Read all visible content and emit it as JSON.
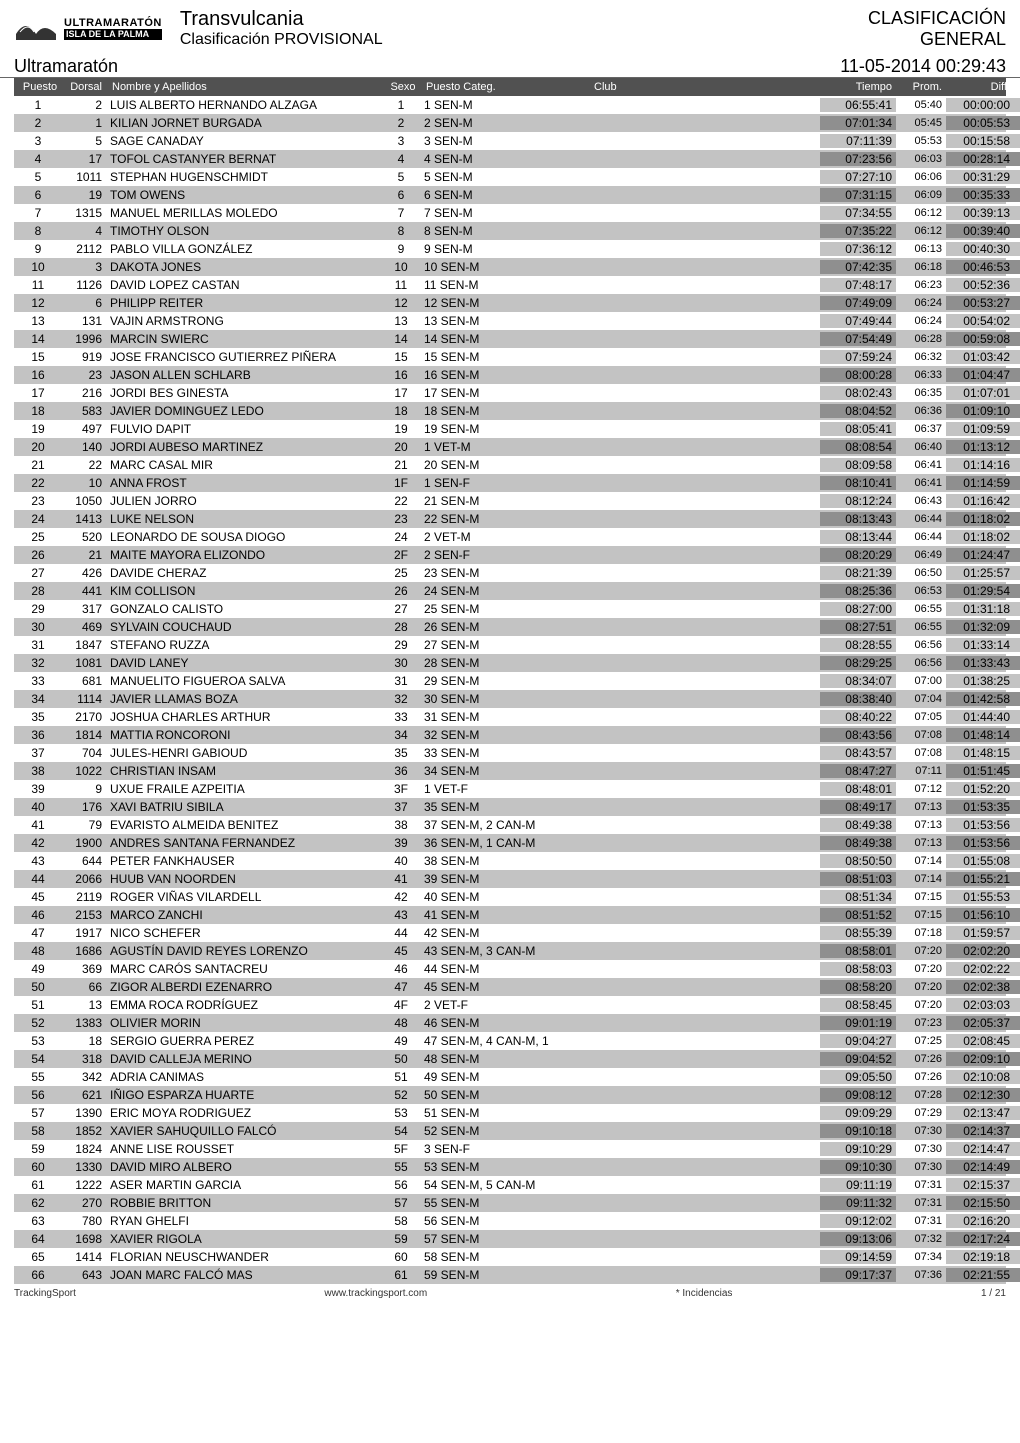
{
  "header": {
    "logo_line1": "ULTRAMARATÓN",
    "logo_line2": "ISLA DE LA PALMA",
    "event_title": "Transvulcania",
    "event_sub": "Clasificación PROVISIONAL",
    "class_title": "CLASIFICACIÓN",
    "class_sub": "GENERAL"
  },
  "section": {
    "name": "Ultramaratón",
    "timestamp": "11-05-2014  00:29:43"
  },
  "cols": {
    "puesto": "Puesto",
    "dorsal": "Dorsal",
    "nombre": "Nombre y Apellidos",
    "sexo": "Sexo",
    "cat": "Puesto Categ.",
    "club": "Club",
    "tiempo": "Tiempo",
    "prom": "Prom.",
    "diff": "Diff."
  },
  "colors": {
    "row_even_bg": "#c3c3c3",
    "row_odd_bg": "#ffffff",
    "tiempo_bg_even": "#8f8f8f",
    "tiempo_bg_odd": "#c3c3c3",
    "diff_bg_even": "#8f8f8f",
    "diff_bg_odd": "#c3c3c3"
  },
  "rows": [
    {
      "p": 1,
      "d": 2,
      "n": "LUIS ALBERTO HERNANDO ALZAGA",
      "s": 1,
      "c": "1 SEN-M",
      "t": "06:55:41",
      "pr": "05:40",
      "df": "00:00:00"
    },
    {
      "p": 2,
      "d": 1,
      "n": "KILIAN JORNET BURGADA",
      "s": 2,
      "c": "2 SEN-M",
      "t": "07:01:34",
      "pr": "05:45",
      "df": "00:05:53"
    },
    {
      "p": 3,
      "d": 5,
      "n": "SAGE CANADAY",
      "s": 3,
      "c": "3 SEN-M",
      "t": "07:11:39",
      "pr": "05:53",
      "df": "00:15:58"
    },
    {
      "p": 4,
      "d": 17,
      "n": "TOFOL CASTANYER BERNAT",
      "s": 4,
      "c": "4 SEN-M",
      "t": "07:23:56",
      "pr": "06:03",
      "df": "00:28:14"
    },
    {
      "p": 5,
      "d": 1011,
      "n": "STEPHAN HUGENSCHMIDT",
      "s": 5,
      "c": "5 SEN-M",
      "t": "07:27:10",
      "pr": "06:06",
      "df": "00:31:29"
    },
    {
      "p": 6,
      "d": 19,
      "n": "TOM OWENS",
      "s": 6,
      "c": "6 SEN-M",
      "t": "07:31:15",
      "pr": "06:09",
      "df": "00:35:33"
    },
    {
      "p": 7,
      "d": 1315,
      "n": "MANUEL MERILLAS MOLEDO",
      "s": 7,
      "c": "7 SEN-M",
      "t": "07:34:55",
      "pr": "06:12",
      "df": "00:39:13"
    },
    {
      "p": 8,
      "d": 4,
      "n": "TIMOTHY OLSON",
      "s": 8,
      "c": "8 SEN-M",
      "t": "07:35:22",
      "pr": "06:12",
      "df": "00:39:40"
    },
    {
      "p": 9,
      "d": 2112,
      "n": "PABLO VILLA GONZÁLEZ",
      "s": 9,
      "c": "9 SEN-M",
      "t": "07:36:12",
      "pr": "06:13",
      "df": "00:40:30"
    },
    {
      "p": 10,
      "d": 3,
      "n": "DAKOTA JONES",
      "s": 10,
      "c": "10 SEN-M",
      "t": "07:42:35",
      "pr": "06:18",
      "df": "00:46:53"
    },
    {
      "p": 11,
      "d": 1126,
      "n": "DAVID LOPEZ CASTAN",
      "s": 11,
      "c": "11 SEN-M",
      "t": "07:48:17",
      "pr": "06:23",
      "df": "00:52:36"
    },
    {
      "p": 12,
      "d": 6,
      "n": "PHILIPP REITER",
      "s": 12,
      "c": "12 SEN-M",
      "t": "07:49:09",
      "pr": "06:24",
      "df": "00:53:27"
    },
    {
      "p": 13,
      "d": 131,
      "n": "VAJIN ARMSTRONG",
      "s": 13,
      "c": "13 SEN-M",
      "t": "07:49:44",
      "pr": "06:24",
      "df": "00:54:02"
    },
    {
      "p": 14,
      "d": 1996,
      "n": "MARCIN SWIERC",
      "s": 14,
      "c": "14 SEN-M",
      "t": "07:54:49",
      "pr": "06:28",
      "df": "00:59:08"
    },
    {
      "p": 15,
      "d": 919,
      "n": "JOSE FRANCISCO GUTIERREZ PIÑERA",
      "s": 15,
      "c": "15 SEN-M",
      "t": "07:59:24",
      "pr": "06:32",
      "df": "01:03:42"
    },
    {
      "p": 16,
      "d": 23,
      "n": "JASON ALLEN SCHLARB",
      "s": 16,
      "c": "16 SEN-M",
      "t": "08:00:28",
      "pr": "06:33",
      "df": "01:04:47"
    },
    {
      "p": 17,
      "d": 216,
      "n": "JORDI BES GINESTA",
      "s": 17,
      "c": "17 SEN-M",
      "t": "08:02:43",
      "pr": "06:35",
      "df": "01:07:01"
    },
    {
      "p": 18,
      "d": 583,
      "n": "JAVIER DOMINGUEZ LEDO",
      "s": 18,
      "c": "18 SEN-M",
      "t": "08:04:52",
      "pr": "06:36",
      "df": "01:09:10"
    },
    {
      "p": 19,
      "d": 497,
      "n": "FULVIO DAPIT",
      "s": 19,
      "c": "19 SEN-M",
      "t": "08:05:41",
      "pr": "06:37",
      "df": "01:09:59"
    },
    {
      "p": 20,
      "d": 140,
      "n": "JORDI AUBESO MARTINEZ",
      "s": 20,
      "c": "1 VET-M",
      "t": "08:08:54",
      "pr": "06:40",
      "df": "01:13:12"
    },
    {
      "p": 21,
      "d": 22,
      "n": "MARC CASAL MIR",
      "s": 21,
      "c": "20 SEN-M",
      "t": "08:09:58",
      "pr": "06:41",
      "df": "01:14:16"
    },
    {
      "p": 22,
      "d": 10,
      "n": "ANNA FROST",
      "s": "1F",
      "c": "1 SEN-F",
      "t": "08:10:41",
      "pr": "06:41",
      "df": "01:14:59"
    },
    {
      "p": 23,
      "d": 1050,
      "n": "JULIEN JORRO",
      "s": 22,
      "c": "21 SEN-M",
      "t": "08:12:24",
      "pr": "06:43",
      "df": "01:16:42"
    },
    {
      "p": 24,
      "d": 1413,
      "n": "LUKE NELSON",
      "s": 23,
      "c": "22 SEN-M",
      "t": "08:13:43",
      "pr": "06:44",
      "df": "01:18:02"
    },
    {
      "p": 25,
      "d": 520,
      "n": "LEONARDO DE SOUSA DIOGO",
      "s": 24,
      "c": "2 VET-M",
      "t": "08:13:44",
      "pr": "06:44",
      "df": "01:18:02"
    },
    {
      "p": 26,
      "d": 21,
      "n": "MAITE MAYORA ELIZONDO",
      "s": "2F",
      "c": "2 SEN-F",
      "t": "08:20:29",
      "pr": "06:49",
      "df": "01:24:47"
    },
    {
      "p": 27,
      "d": 426,
      "n": "DAVIDE CHERAZ",
      "s": 25,
      "c": "23 SEN-M",
      "t": "08:21:39",
      "pr": "06:50",
      "df": "01:25:57"
    },
    {
      "p": 28,
      "d": 441,
      "n": "KIM COLLISON",
      "s": 26,
      "c": "24 SEN-M",
      "t": "08:25:36",
      "pr": "06:53",
      "df": "01:29:54"
    },
    {
      "p": 29,
      "d": 317,
      "n": "GONZALO CALISTO",
      "s": 27,
      "c": "25 SEN-M",
      "t": "08:27:00",
      "pr": "06:55",
      "df": "01:31:18"
    },
    {
      "p": 30,
      "d": 469,
      "n": "SYLVAIN COUCHAUD",
      "s": 28,
      "c": "26 SEN-M",
      "t": "08:27:51",
      "pr": "06:55",
      "df": "01:32:09"
    },
    {
      "p": 31,
      "d": 1847,
      "n": "STEFANO RUZZA",
      "s": 29,
      "c": "27 SEN-M",
      "t": "08:28:55",
      "pr": "06:56",
      "df": "01:33:14"
    },
    {
      "p": 32,
      "d": 1081,
      "n": "DAVID LANEY",
      "s": 30,
      "c": "28 SEN-M",
      "t": "08:29:25",
      "pr": "06:56",
      "df": "01:33:43"
    },
    {
      "p": 33,
      "d": 681,
      "n": "MANUELITO FIGUEROA SALVA",
      "s": 31,
      "c": "29 SEN-M",
      "t": "08:34:07",
      "pr": "07:00",
      "df": "01:38:25"
    },
    {
      "p": 34,
      "d": 1114,
      "n": "JAVIER LLAMAS BOZA",
      "s": 32,
      "c": "30 SEN-M",
      "t": "08:38:40",
      "pr": "07:04",
      "df": "01:42:58"
    },
    {
      "p": 35,
      "d": 2170,
      "n": "JOSHUA CHARLES ARTHUR",
      "s": 33,
      "c": "31 SEN-M",
      "t": "08:40:22",
      "pr": "07:05",
      "df": "01:44:40"
    },
    {
      "p": 36,
      "d": 1814,
      "n": "MATTIA RONCORONI",
      "s": 34,
      "c": "32 SEN-M",
      "t": "08:43:56",
      "pr": "07:08",
      "df": "01:48:14"
    },
    {
      "p": 37,
      "d": 704,
      "n": "JULES-HENRI GABIOUD",
      "s": 35,
      "c": "33 SEN-M",
      "t": "08:43:57",
      "pr": "07:08",
      "df": "01:48:15"
    },
    {
      "p": 38,
      "d": 1022,
      "n": "CHRISTIAN INSAM",
      "s": 36,
      "c": "34 SEN-M",
      "t": "08:47:27",
      "pr": "07:11",
      "df": "01:51:45"
    },
    {
      "p": 39,
      "d": 9,
      "n": "UXUE FRAILE AZPEITIA",
      "s": "3F",
      "c": "1 VET-F",
      "t": "08:48:01",
      "pr": "07:12",
      "df": "01:52:20"
    },
    {
      "p": 40,
      "d": 176,
      "n": "XAVI BATRIU SIBILA",
      "s": 37,
      "c": "35 SEN-M",
      "t": "08:49:17",
      "pr": "07:13",
      "df": "01:53:35"
    },
    {
      "p": 41,
      "d": 79,
      "n": "EVARISTO ALMEIDA BENITEZ",
      "s": 38,
      "c": "37 SEN-M,  2 CAN-M",
      "t": "08:49:38",
      "pr": "07:13",
      "df": "01:53:56"
    },
    {
      "p": 42,
      "d": 1900,
      "n": "ANDRES SANTANA FERNANDEZ",
      "s": 39,
      "c": "36 SEN-M,  1 CAN-M",
      "t": "08:49:38",
      "pr": "07:13",
      "df": "01:53:56"
    },
    {
      "p": 43,
      "d": 644,
      "n": "PETER FANKHAUSER",
      "s": 40,
      "c": "38 SEN-M",
      "t": "08:50:50",
      "pr": "07:14",
      "df": "01:55:08"
    },
    {
      "p": 44,
      "d": 2066,
      "n": "HUUB VAN NOORDEN",
      "s": 41,
      "c": "39 SEN-M",
      "t": "08:51:03",
      "pr": "07:14",
      "df": "01:55:21"
    },
    {
      "p": 45,
      "d": 2119,
      "n": "ROGER VIÑAS VILARDELL",
      "s": 42,
      "c": "40 SEN-M",
      "t": "08:51:34",
      "pr": "07:15",
      "df": "01:55:53"
    },
    {
      "p": 46,
      "d": 2153,
      "n": "MARCO ZANCHI",
      "s": 43,
      "c": "41 SEN-M",
      "t": "08:51:52",
      "pr": "07:15",
      "df": "01:56:10"
    },
    {
      "p": 47,
      "d": 1917,
      "n": "NICO SCHEFER",
      "s": 44,
      "c": "42 SEN-M",
      "t": "08:55:39",
      "pr": "07:18",
      "df": "01:59:57"
    },
    {
      "p": 48,
      "d": 1686,
      "n": "AGUSTÍN DAVID REYES LORENZO",
      "s": 45,
      "c": "43 SEN-M,  3 CAN-M",
      "t": "08:58:01",
      "pr": "07:20",
      "df": "02:02:20"
    },
    {
      "p": 49,
      "d": 369,
      "n": "MARC CARÓS SANTACREU",
      "s": 46,
      "c": "44 SEN-M",
      "t": "08:58:03",
      "pr": "07:20",
      "df": "02:02:22"
    },
    {
      "p": 50,
      "d": 66,
      "n": "ZIGOR ALBERDI EZENARRO",
      "s": 47,
      "c": "45 SEN-M",
      "t": "08:58:20",
      "pr": "07:20",
      "df": "02:02:38"
    },
    {
      "p": 51,
      "d": 13,
      "n": "EMMA ROCA RODRÍGUEZ",
      "s": "4F",
      "c": "2 VET-F",
      "t": "08:58:45",
      "pr": "07:20",
      "df": "02:03:03"
    },
    {
      "p": 52,
      "d": 1383,
      "n": "OLIVIER MORIN",
      "s": 48,
      "c": "46 SEN-M",
      "t": "09:01:19",
      "pr": "07:23",
      "df": "02:05:37"
    },
    {
      "p": 53,
      "d": 18,
      "n": "SERGIO GUERRA PEREZ",
      "s": 49,
      "c": "47 SEN-M,  4 CAN-M,  1",
      "t": "09:04:27",
      "pr": "07:25",
      "df": "02:08:45"
    },
    {
      "p": 54,
      "d": 318,
      "n": "DAVID CALLEJA MERINO",
      "s": 50,
      "c": "48 SEN-M",
      "t": "09:04:52",
      "pr": "07:26",
      "df": "02:09:10"
    },
    {
      "p": 55,
      "d": 342,
      "n": "ADRIA CANIMAS",
      "s": 51,
      "c": "49 SEN-M",
      "t": "09:05:50",
      "pr": "07:26",
      "df": "02:10:08"
    },
    {
      "p": 56,
      "d": 621,
      "n": "IÑIGO ESPARZA HUARTE",
      "s": 52,
      "c": "50 SEN-M",
      "t": "09:08:12",
      "pr": "07:28",
      "df": "02:12:30"
    },
    {
      "p": 57,
      "d": 1390,
      "n": "ERIC MOYA RODRIGUEZ",
      "s": 53,
      "c": "51 SEN-M",
      "t": "09:09:29",
      "pr": "07:29",
      "df": "02:13:47"
    },
    {
      "p": 58,
      "d": 1852,
      "n": "XAVIER SAHUQUILLO FALCÓ",
      "s": 54,
      "c": "52 SEN-M",
      "t": "09:10:18",
      "pr": "07:30",
      "df": "02:14:37"
    },
    {
      "p": 59,
      "d": 1824,
      "n": "ANNE LISE ROUSSET",
      "s": "5F",
      "c": "3 SEN-F",
      "t": "09:10:29",
      "pr": "07:30",
      "df": "02:14:47"
    },
    {
      "p": 60,
      "d": 1330,
      "n": "DAVID MIRO ALBERO",
      "s": 55,
      "c": "53 SEN-M",
      "t": "09:10:30",
      "pr": "07:30",
      "df": "02:14:49"
    },
    {
      "p": 61,
      "d": 1222,
      "n": "ASER MARTIN GARCIA",
      "s": 56,
      "c": "54 SEN-M,  5 CAN-M",
      "t": "09:11:19",
      "pr": "07:31",
      "df": "02:15:37"
    },
    {
      "p": 62,
      "d": 270,
      "n": "ROBBIE BRITTON",
      "s": 57,
      "c": "55 SEN-M",
      "t": "09:11:32",
      "pr": "07:31",
      "df": "02:15:50"
    },
    {
      "p": 63,
      "d": 780,
      "n": "RYAN GHELFI",
      "s": 58,
      "c": "56 SEN-M",
      "t": "09:12:02",
      "pr": "07:31",
      "df": "02:16:20"
    },
    {
      "p": 64,
      "d": 1698,
      "n": "XAVIER RIGOLA",
      "s": 59,
      "c": "57 SEN-M",
      "t": "09:13:06",
      "pr": "07:32",
      "df": "02:17:24"
    },
    {
      "p": 65,
      "d": 1414,
      "n": "FLORIAN NEUSCHWANDER",
      "s": 60,
      "c": "58 SEN-M",
      "t": "09:14:59",
      "pr": "07:34",
      "df": "02:19:18"
    },
    {
      "p": 66,
      "d": 643,
      "n": "JOAN MARC FALCÓ MAS",
      "s": 61,
      "c": "59 SEN-M",
      "t": "09:17:37",
      "pr": "07:36",
      "df": "02:21:55"
    }
  ],
  "footer": {
    "left": "TrackingSport",
    "center": "www.trackingsport.com",
    "right_star": "* Incidencias",
    "page": "1 / 21"
  }
}
